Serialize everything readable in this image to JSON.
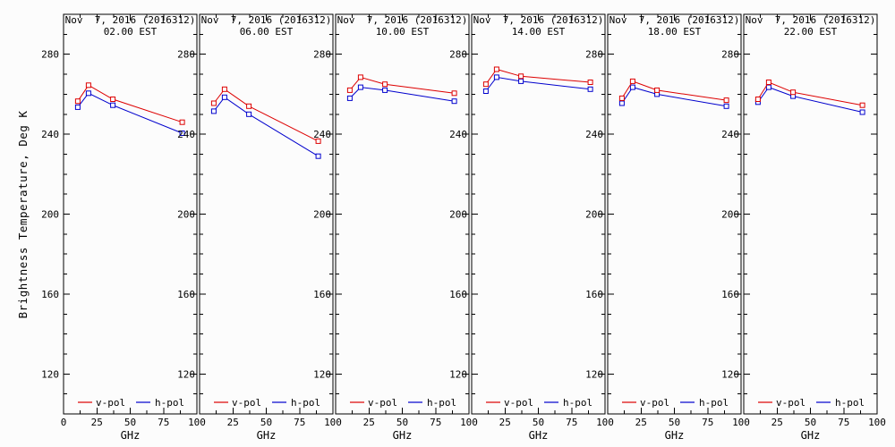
{
  "figure": {
    "ylabel": "Brightness Temperature, Deg K",
    "xlabel": "GHz",
    "background": "#fcfcfc",
    "axis_color": "#000000"
  },
  "legend": {
    "vpol_label": "v-pol",
    "hpol_label": "h-pol"
  },
  "colors": {
    "vpol": "#dd0000",
    "hpol": "#0000cd"
  },
  "chart_data": {
    "type": "line",
    "x": [
      10.7,
      18.7,
      37.0,
      89.0
    ],
    "xlabel": "GHz",
    "ylabel": "Brightness Temperature, Deg K",
    "xlim": [
      0,
      100
    ],
    "ylim": [
      100,
      300
    ],
    "x_major_ticks": [
      0,
      25,
      50,
      75,
      100
    ],
    "x_minor_ticks": [
      12.5,
      37.5,
      62.5,
      87.5
    ],
    "y_major_ticks": [
      120,
      160,
      200,
      240,
      280
    ],
    "y_minor_step": 10,
    "grid": false,
    "legend_position": "bottom-inside",
    "legend_entries": [
      "v-pol",
      "h-pol"
    ],
    "marker": "open-square",
    "panels": [
      {
        "title_line1": "Nov  7, 2016 (2016312)",
        "title_line2": "02.00 EST",
        "series": [
          {
            "name": "h-pol",
            "color": "#0000cd",
            "values": [
              253.5,
              260.5,
              254.5,
              240.5
            ]
          },
          {
            "name": "v-pol",
            "color": "#dd0000",
            "values": [
              256.5,
              264.5,
              257.5,
              246.0
            ]
          }
        ]
      },
      {
        "title_line1": "Nov  7, 2016 (2016312)",
        "title_line2": "06.00 EST",
        "series": [
          {
            "name": "h-pol",
            "color": "#0000cd",
            "values": [
              251.5,
              258.5,
              250.0,
              229.0
            ]
          },
          {
            "name": "v-pol",
            "color": "#dd0000",
            "values": [
              255.5,
              262.5,
              254.0,
              236.5
            ]
          }
        ]
      },
      {
        "title_line1": "Nov  7, 2016 (2016312)",
        "title_line2": "10.00 EST",
        "series": [
          {
            "name": "h-pol",
            "color": "#0000cd",
            "values": [
              258.0,
              263.5,
              262.0,
              256.5
            ]
          },
          {
            "name": "v-pol",
            "color": "#dd0000",
            "values": [
              262.0,
              268.5,
              265.0,
              260.5
            ]
          }
        ]
      },
      {
        "title_line1": "Nov  7, 2016 (2016312)",
        "title_line2": "14.00 EST",
        "series": [
          {
            "name": "h-pol",
            "color": "#0000cd",
            "values": [
              261.5,
              268.5,
              266.5,
              262.5
            ]
          },
          {
            "name": "v-pol",
            "color": "#dd0000",
            "values": [
              265.0,
              272.5,
              269.0,
              266.0
            ]
          }
        ]
      },
      {
        "title_line1": "Nov  7, 2016 (2016312)",
        "title_line2": "18.00 EST",
        "series": [
          {
            "name": "h-pol",
            "color": "#0000cd",
            "values": [
              255.5,
              263.5,
              260.0,
              254.0
            ]
          },
          {
            "name": "v-pol",
            "color": "#dd0000",
            "values": [
              258.0,
              266.5,
              262.0,
              257.0
            ]
          }
        ]
      },
      {
        "title_line1": "Nov  7, 2016 (2016312)",
        "title_line2": "22.00 EST",
        "series": [
          {
            "name": "h-pol",
            "color": "#0000cd",
            "values": [
              256.0,
              263.5,
              259.0,
              251.0
            ]
          },
          {
            "name": "v-pol",
            "color": "#dd0000",
            "values": [
              257.5,
              266.0,
              261.0,
              254.5
            ]
          }
        ]
      }
    ]
  }
}
